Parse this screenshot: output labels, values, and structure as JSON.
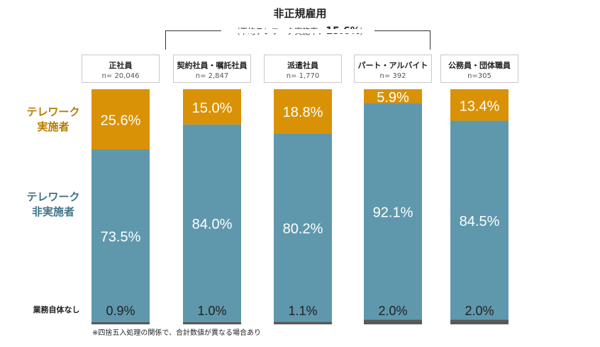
{
  "header": {
    "group_title": "非正規雇用",
    "group_sub_prefix": "（平均テレワーク実施率：",
    "group_rate": "15.6%",
    "group_sub_suffix": "）"
  },
  "row_labels": {
    "telework_line1": "テレワーク",
    "telework_line2": "実施者",
    "non_telework_line1": "テレワーク",
    "non_telework_line2": "非実施者",
    "no_work": "業務自体なし"
  },
  "footnote": "※四捨五入処理の関係で、合計数値が異なる場合あり",
  "colors": {
    "telework": "#d99205",
    "non_telework": "#5f98ad",
    "no_work": "#595959"
  },
  "chart_data": {
    "type": "bar",
    "stacked": true,
    "categories": [
      {
        "name": "正社員",
        "n": "n= 20,046"
      },
      {
        "name": "契約社員・嘱託社員",
        "n": "n= 2,847"
      },
      {
        "name": "派遣社員",
        "n": "n= 1,770"
      },
      {
        "name": "パート・アルバイト",
        "n": "n= 392"
      },
      {
        "name": "公務員・団体職員",
        "n": "n=305"
      }
    ],
    "series": [
      {
        "name": "テレワーク実施者",
        "values": [
          25.6,
          15.0,
          18.8,
          5.9,
          13.4
        ],
        "labels": [
          "25.6%",
          "15.0%",
          "18.8%",
          "5.9%",
          "13.4%"
        ]
      },
      {
        "name": "テレワーク非実施者",
        "values": [
          73.5,
          84.0,
          80.2,
          92.1,
          84.5
        ],
        "labels": [
          "73.5%",
          "84.0%",
          "80.2%",
          "92.1%",
          "84.5%"
        ]
      },
      {
        "name": "業務自体なし",
        "values": [
          0.9,
          1.0,
          1.1,
          2.0,
          2.0
        ],
        "labels": [
          "0.9%",
          "1.0%",
          "1.1%",
          "2.0%",
          "2.0%"
        ]
      }
    ],
    "ylim": [
      0,
      100
    ]
  }
}
